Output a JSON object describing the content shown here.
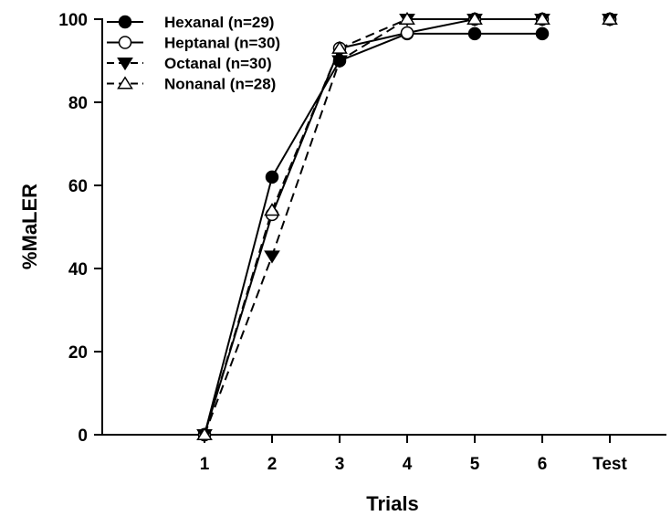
{
  "chart_data": {
    "type": "line",
    "title": "",
    "xlabel": "Trials",
    "ylabel": "%MaLER",
    "categories": [
      "1",
      "2",
      "3",
      "4",
      "5",
      "6",
      "Test"
    ],
    "ylim": [
      0,
      100
    ],
    "yticks": [
      0,
      20,
      40,
      60,
      80,
      100
    ],
    "grid": false,
    "legend_position": "top-left",
    "series": [
      {
        "name": "Hexanal (n=29)",
        "marker": "filled-circle",
        "line_style": "solid",
        "values": [
          0,
          62,
          90,
          96.5,
          96.5,
          96.5,
          100
        ],
        "connected_points": 6
      },
      {
        "name": "Heptanal (n=30)",
        "marker": "open-circle",
        "line_style": "solid",
        "values": [
          0,
          53,
          93,
          96.7,
          100,
          100,
          100
        ],
        "connected_points": 6
      },
      {
        "name": "Octanal (n=30)",
        "marker": "filled-triangle-down",
        "line_style": "dashed",
        "values": [
          0,
          43,
          90,
          100,
          100,
          100,
          100
        ],
        "connected_points": 6
      },
      {
        "name": "Nonanal (n=28)",
        "marker": "open-triangle-up",
        "line_style": "dashed",
        "values": [
          0,
          54,
          93,
          100,
          100,
          100,
          100
        ],
        "connected_points": 6
      }
    ]
  }
}
